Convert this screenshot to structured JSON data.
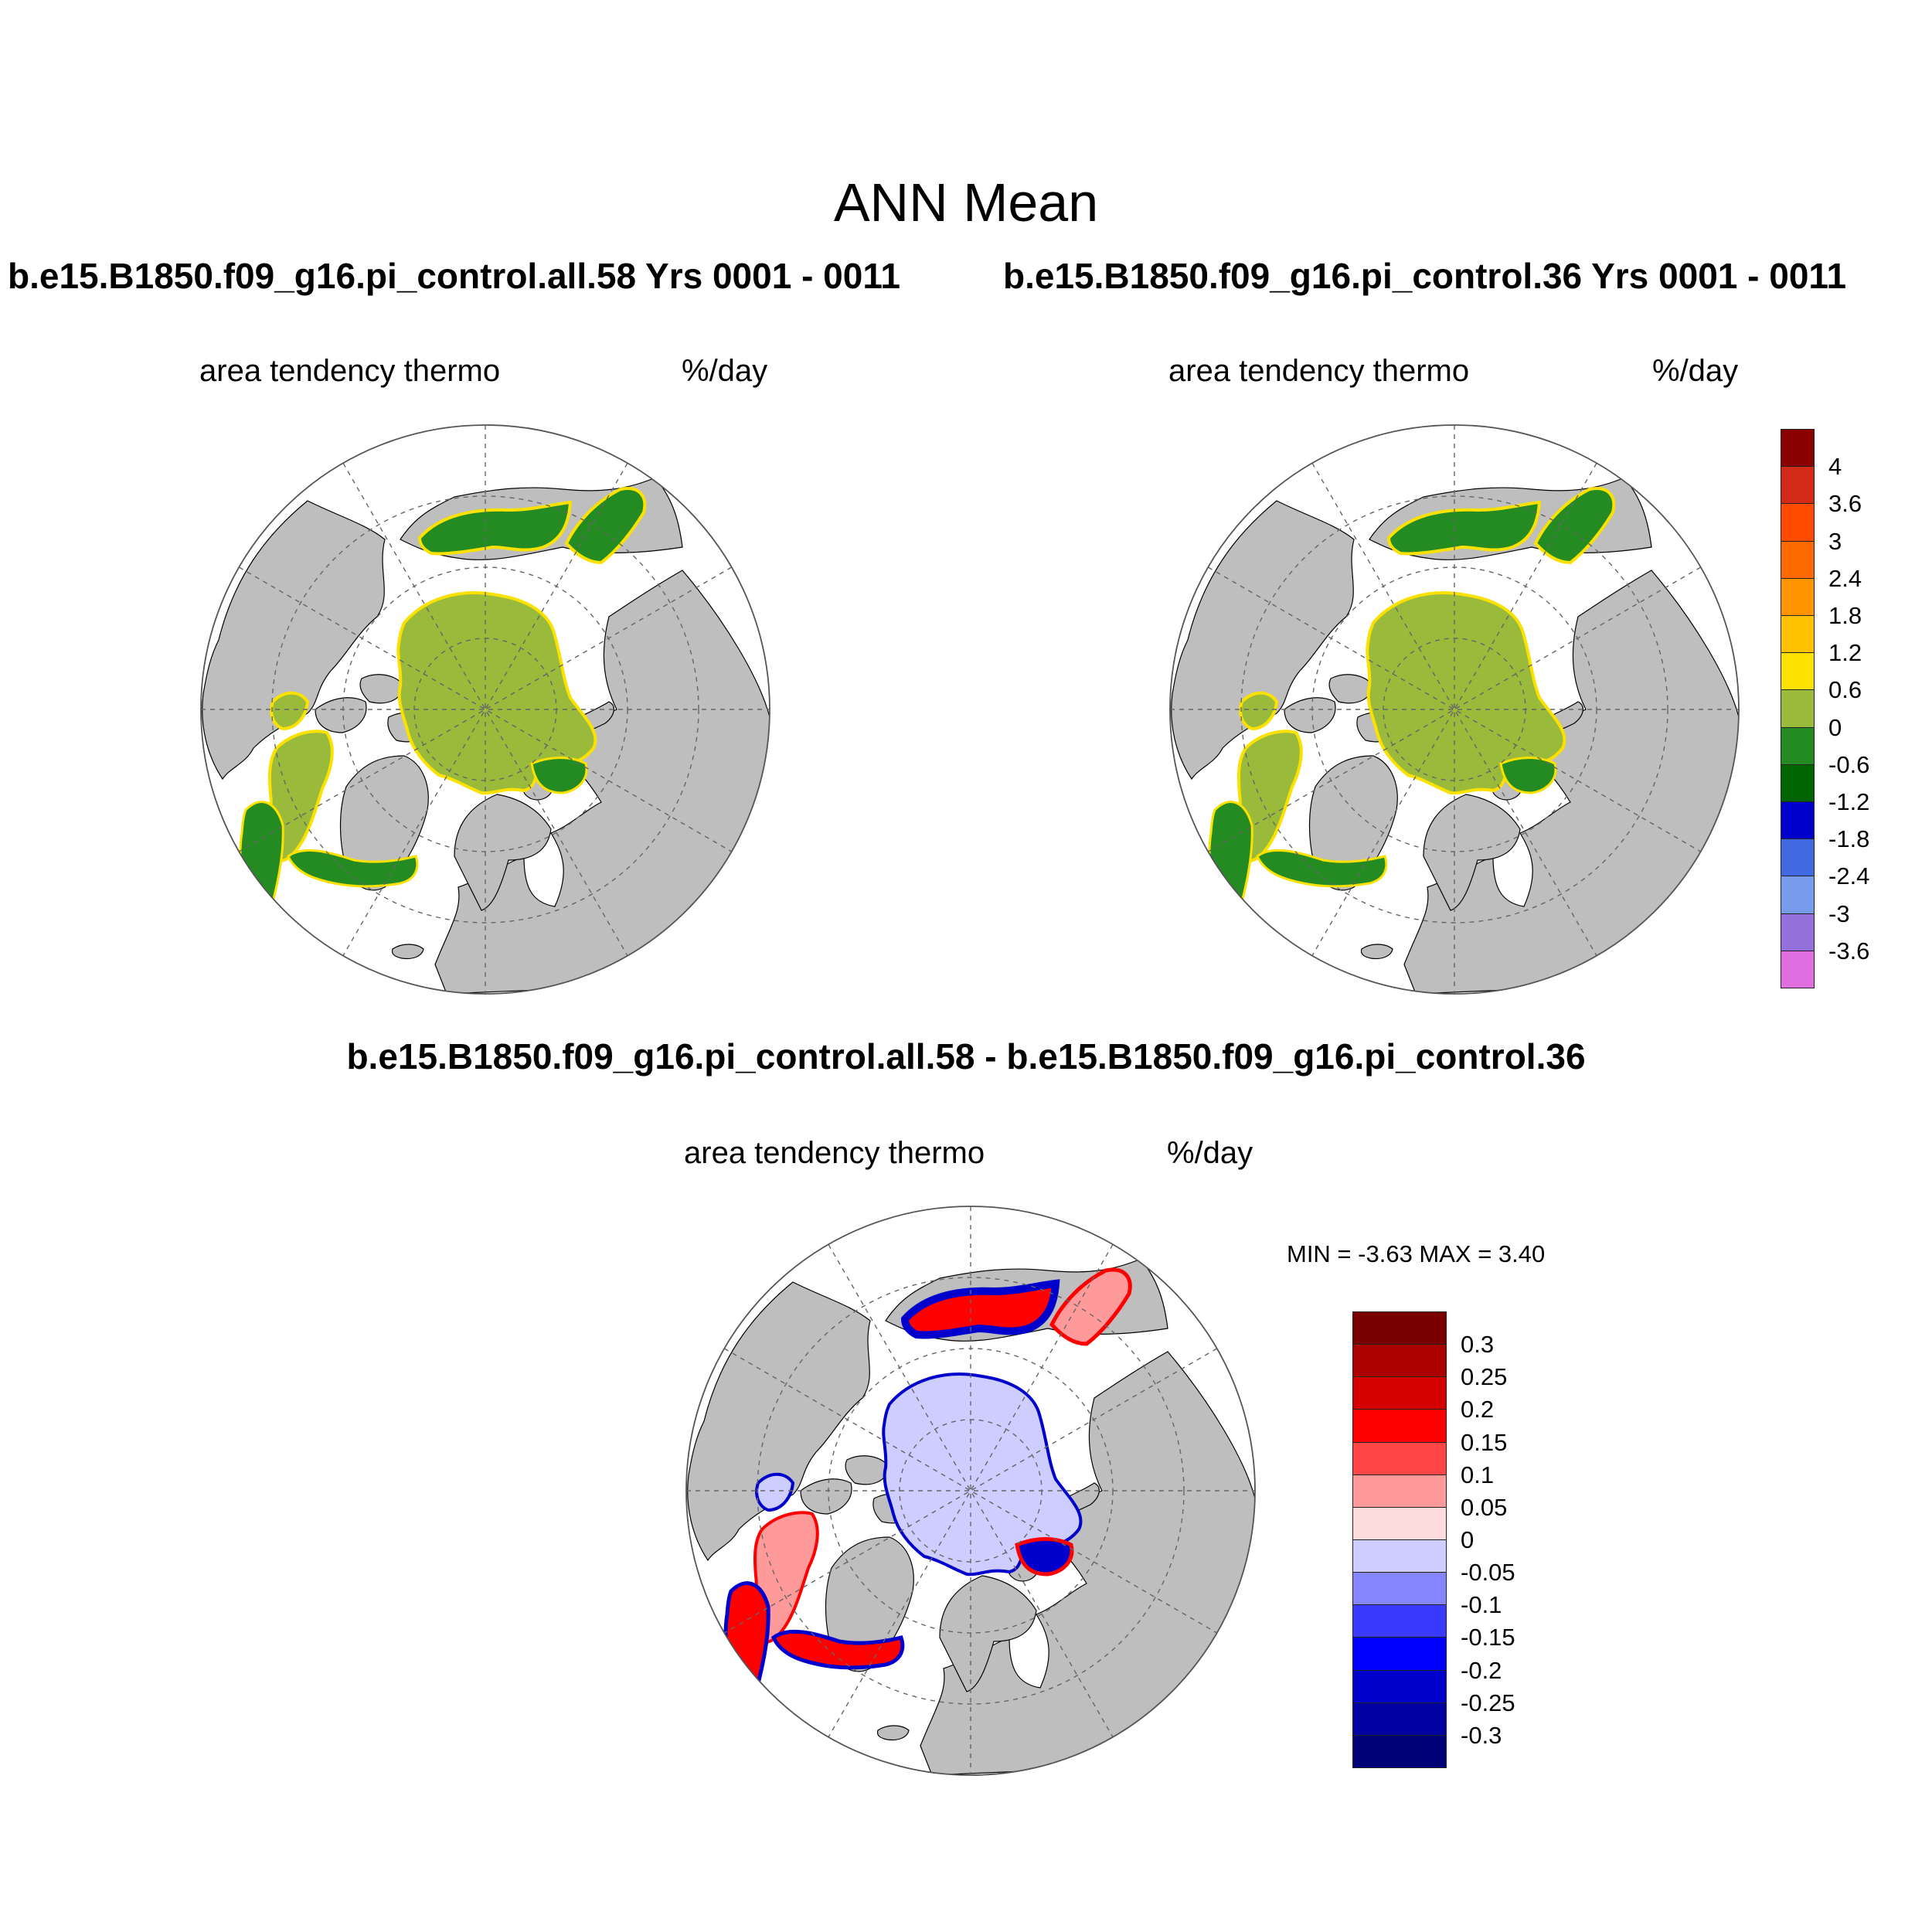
{
  "title": "ANN Mean",
  "panels": [
    {
      "case": "b.e15.B1850.f09_g16.pi_control.all.58  Yrs 0001 - 0011",
      "variable": "area tendency thermo",
      "units": "%/day"
    },
    {
      "case": "b.e15.B1850.f09_g16.pi_control.36  Yrs 0001 - 0011",
      "variable": "area tendency thermo",
      "units": "%/day"
    }
  ],
  "difference": {
    "title": "b.e15.B1850.f09_g16.pi_control.all.58 - b.e15.B1850.f09_g16.pi_control.36",
    "variable": "area tendency thermo",
    "units": "%/day",
    "minmax": "MIN =  -3.63 MAX =   3.40"
  },
  "colorbar_main": {
    "labels": [
      "4",
      "3.6",
      "3",
      "2.4",
      "1.8",
      "1.2",
      "0.6",
      "0",
      "-0.6",
      "-1.2",
      "-1.8",
      "-2.4",
      "-3",
      "-3.6"
    ],
    "colors": [
      "#8b0000",
      "#d22a16",
      "#ff4b00",
      "#ff6a00",
      "#ff9400",
      "#ffc200",
      "#fbe100",
      "#9aba3b",
      "#238b22",
      "#006400",
      "#0000cd",
      "#4169e1",
      "#789ced",
      "#9370db",
      "#e06ee0"
    ]
  },
  "colorbar_diff": {
    "labels": [
      "0.3",
      "0.25",
      "0.2",
      "0.15",
      "0.1",
      "0.05",
      "0",
      "-0.05",
      "-0.1",
      "-0.15",
      "-0.2",
      "-0.25",
      "-0.3"
    ],
    "colors": [
      "#7a0000",
      "#ab0000",
      "#d40000",
      "#ff0000",
      "#ff4545",
      "#ff9a9a",
      "#fcdcdc",
      "#cdcdff",
      "#8585ff",
      "#3a3aff",
      "#0000ff",
      "#0000cd",
      "#0000a0",
      "#000076"
    ]
  },
  "map_colors": {
    "land": "#bebebe",
    "ocean": "#ffffff",
    "ice_green": "#9aba3b",
    "dark_green": "#238b22",
    "edge": "#fbe100",
    "diff_ice": "#cdcdff",
    "diff_red": "#ff0000",
    "diff_blue": "#0000cd",
    "diff_pink": "#ff9a9a"
  }
}
